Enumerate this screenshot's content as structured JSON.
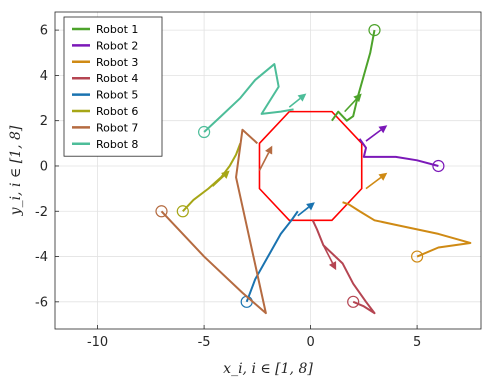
{
  "chart_data": {
    "type": "line",
    "title": "",
    "xlabel": "x_i,    i ∈ [1, 8]",
    "ylabel": "y_i,    i ∈ [1, 8]",
    "xlim": [
      -12,
      8
    ],
    "ylim": [
      -7.2,
      6.8
    ],
    "xticks": [
      -10,
      -5,
      0,
      5
    ],
    "yticks": [
      -6,
      -4,
      -2,
      0,
      2,
      4,
      6
    ],
    "grid": true,
    "legend_position": "top-left",
    "series": [
      {
        "name": "Robot 1",
        "color": "#4da32b",
        "start": [
          3.0,
          6.0
        ],
        "x": [
          3.0,
          2.8,
          2.5,
          2.2,
          2.0,
          1.7,
          1.3,
          1.0
        ],
        "y": [
          6.0,
          5.0,
          4.0,
          3.0,
          2.2,
          2.0,
          2.4,
          2.0
        ],
        "arrow": [
          [
            1.6,
            2.4
          ],
          [
            2.4,
            3.2
          ]
        ]
      },
      {
        "name": "Robot 2",
        "color": "#7b18b8",
        "start": [
          6.0,
          0.0
        ],
        "x": [
          6.0,
          5.0,
          4.0,
          3.0,
          2.5,
          2.6,
          2.3
        ],
        "y": [
          0.0,
          0.25,
          0.4,
          0.4,
          0.4,
          0.8,
          1.2
        ],
        "arrow": [
          [
            2.6,
            1.1
          ],
          [
            3.6,
            1.8
          ]
        ]
      },
      {
        "name": "Robot 3",
        "color": "#cf8a14",
        "start": [
          5.0,
          -4.0
        ],
        "x": [
          5.0,
          6.0,
          7.5,
          6.0,
          4.0,
          3.0,
          2.3,
          1.8,
          1.5
        ],
        "y": [
          -4.0,
          -3.6,
          -3.4,
          -3.0,
          -2.6,
          -2.4,
          -2.0,
          -1.7,
          -1.6
        ],
        "arrow": [
          [
            2.6,
            -1.0
          ],
          [
            3.6,
            -0.3
          ]
        ]
      },
      {
        "name": "Robot 4",
        "color": "#b54552",
        "start": [
          2.0,
          -6.0
        ],
        "x": [
          2.0,
          2.5,
          3.0,
          2.6,
          2.0,
          1.5,
          0.6,
          0.3,
          0.1
        ],
        "y": [
          -6.0,
          -6.2,
          -6.5,
          -6.0,
          -5.2,
          -4.3,
          -3.5,
          -2.8,
          -2.4
        ],
        "arrow": [
          [
            0.6,
            -3.5
          ],
          [
            1.2,
            -4.6
          ]
        ]
      },
      {
        "name": "Robot 5",
        "color": "#1a73b0",
        "start": [
          -3.0,
          -6.0
        ],
        "x": [
          -3.0,
          -2.6,
          -2.0,
          -1.4,
          -0.9,
          -0.6
        ],
        "y": [
          -6.0,
          -5.0,
          -4.0,
          -3.0,
          -2.4,
          -2.0
        ],
        "arrow": [
          [
            -0.6,
            -2.2
          ],
          [
            0.2,
            -1.6
          ]
        ]
      },
      {
        "name": "Robot 6",
        "color": "#a6a616",
        "start": [
          -6.0,
          -2.0
        ],
        "x": [
          -6.0,
          -5.5,
          -4.8,
          -4.2,
          -3.8,
          -3.5,
          -3.3
        ],
        "y": [
          -2.0,
          -1.5,
          -1.0,
          -0.5,
          0.0,
          0.5,
          1.0
        ],
        "arrow": [
          [
            -4.6,
            -0.9
          ],
          [
            -3.8,
            -0.2
          ]
        ]
      },
      {
        "name": "Robot 7",
        "color": "#b56b41",
        "start": [
          -7.0,
          -2.0
        ],
        "x": [
          -7.0,
          -5.0,
          -3.2,
          -2.1,
          -2.8,
          -3.5,
          -3.2,
          -2.5
        ],
        "y": [
          -2.0,
          -4.0,
          -5.6,
          -6.5,
          -3.5,
          -0.5,
          1.6,
          1.0
        ],
        "arrow": [
          [
            -2.4,
            -0.2
          ],
          [
            -1.8,
            0.9
          ]
        ]
      },
      {
        "name": "Robot 8",
        "color": "#4dbd99",
        "start": [
          -5.0,
          1.5
        ],
        "x": [
          -5.0,
          -4.2,
          -3.3,
          -2.6,
          -1.7,
          -1.5,
          -2.3,
          -1.4,
          -0.8
        ],
        "y": [
          1.5,
          2.2,
          3.0,
          3.8,
          4.5,
          3.5,
          2.3,
          2.4,
          2.5
        ],
        "arrow": [
          [
            -1.0,
            2.6
          ],
          [
            -0.2,
            3.2
          ]
        ]
      }
    ],
    "polygon": {
      "color": "#ff0000",
      "x": [
        -1.0,
        1.0,
        2.4,
        2.4,
        1.0,
        -1.0,
        -2.4,
        -2.4,
        -1.0
      ],
      "y": [
        2.4,
        2.4,
        1.0,
        -1.0,
        -2.4,
        -2.4,
        -1.0,
        1.0,
        2.4
      ]
    }
  }
}
